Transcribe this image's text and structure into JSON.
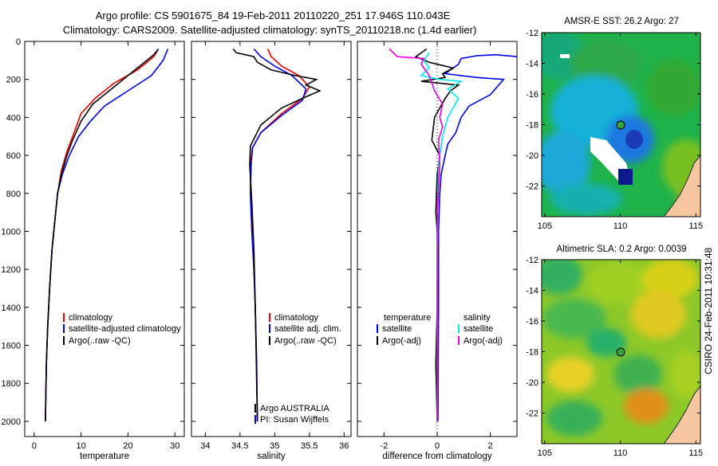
{
  "figure": {
    "title_line1": "Argo profile: CS 5901675_84 19-Feb-2011 20110220_251 17.946S 110.043E",
    "title_line2": "Climatology: CARS2009. Satellite-adjusted climatology: synTS_20110218.nc (1.4d earlier)",
    "side_text": "CSIRO 24-Feb-2011 10:31:48",
    "colors": {
      "red": "#e00000",
      "blue": "#0000e0",
      "black": "#000000",
      "cyan": "#00e8e8",
      "magenta": "#e000e0"
    }
  },
  "chart_data": [
    {
      "id": "temperature",
      "type": "line",
      "xlabel": "temperature",
      "ylabel": "",
      "xlim": [
        -2,
        32
      ],
      "ylim": [
        0,
        2080
      ],
      "y_inverted": true,
      "xticks": [
        "0",
        "10",
        "20",
        "30"
      ],
      "yticks": [
        "0",
        "200",
        "400",
        "600",
        "800",
        "1000",
        "1200",
        "1400",
        "1600",
        "1800",
        "2000"
      ],
      "legend": [
        "climatology",
        "satellite-adjusted climatology",
        "Argo(..raw -QC)"
      ],
      "series": [
        {
          "name": "climatology",
          "color": "red",
          "x": [
            26.5,
            25.5,
            22,
            17,
            13,
            10,
            8.5,
            7,
            5.8,
            5,
            4.6,
            3.8,
            3.3,
            2.9,
            2.6,
            2.4
          ],
          "y": [
            40,
            80,
            150,
            220,
            300,
            380,
            480,
            580,
            680,
            800,
            900,
            1100,
            1300,
            1500,
            1700,
            2000
          ]
        },
        {
          "name": "satellite-adjusted climatology",
          "color": "blue",
          "x": [
            28.5,
            27.5,
            25,
            20,
            15,
            12,
            9.5,
            7.5,
            6,
            5,
            4.6,
            3.8,
            3.3,
            2.9,
            2.6,
            2.4
          ],
          "y": [
            40,
            100,
            180,
            260,
            340,
            420,
            500,
            600,
            700,
            800,
            900,
            1100,
            1300,
            1500,
            1700,
            2000
          ]
        },
        {
          "name": "Argo(..raw -QC)",
          "color": "black",
          "x": [
            26.5,
            25.5,
            23,
            20,
            16.5,
            12.5,
            10,
            8.2,
            7,
            5.8,
            5,
            4.6,
            3.8,
            3.3,
            2.9,
            2.6,
            2.4
          ],
          "y": [
            40,
            70,
            120,
            180,
            250,
            330,
            420,
            520,
            600,
            700,
            800,
            900,
            1100,
            1300,
            1500,
            1700,
            2000
          ]
        }
      ]
    },
    {
      "id": "salinity",
      "type": "line",
      "xlabel": "salinity",
      "ylabel": "",
      "xlim": [
        33.8,
        36.1
      ],
      "ylim": [
        0,
        2080
      ],
      "y_inverted": true,
      "xticks": [
        "34",
        "34.5",
        "35",
        "35.5",
        "36"
      ],
      "legend": [
        "climatology",
        "satellite adj. clim.",
        "Argo(..raw -QC)"
      ],
      "annotations": [
        "Argo AUSTRALIA",
        "PI: Susan Wijffels"
      ],
      "series": [
        {
          "name": "climatology",
          "color": "red",
          "x": [
            34.9,
            34.95,
            35.1,
            35.35,
            35.5,
            35.4,
            35.1,
            34.8,
            34.68,
            34.65,
            34.65,
            34.67,
            34.7,
            34.72,
            34.74,
            34.75
          ],
          "y": [
            40,
            80,
            130,
            180,
            240,
            300,
            380,
            480,
            560,
            650,
            800,
            1000,
            1200,
            1400,
            1700,
            2000
          ]
        },
        {
          "name": "satellite adj. clim.",
          "color": "blue",
          "x": [
            34.7,
            34.8,
            35.0,
            35.25,
            35.45,
            35.4,
            35.1,
            34.8,
            34.68,
            34.66,
            34.65,
            34.67,
            34.7,
            34.72,
            34.74,
            34.75
          ],
          "y": [
            40,
            80,
            130,
            180,
            250,
            310,
            390,
            480,
            560,
            650,
            800,
            1000,
            1200,
            1400,
            1700,
            2000
          ]
        },
        {
          "name": "Argo(..raw -QC)",
          "color": "black",
          "x": [
            34.4,
            34.45,
            34.7,
            34.75,
            34.95,
            35.3,
            35.6,
            35.45,
            35.65,
            35.4,
            35.1,
            34.8,
            34.65,
            34.64,
            34.67,
            34.7,
            34.72,
            34.75
          ],
          "y": [
            40,
            60,
            80,
            110,
            150,
            180,
            200,
            230,
            260,
            300,
            350,
            440,
            550,
            650,
            850,
            1100,
            1400,
            2000
          ]
        }
      ]
    },
    {
      "id": "difference",
      "type": "line",
      "xlabel": "difference from climatology",
      "ylabel": "",
      "xlim": [
        -3,
        3
      ],
      "ylim": [
        0,
        2080
      ],
      "y_inverted": true,
      "xticks": [
        "-2",
        "0",
        "2"
      ],
      "legend_titles": [
        "temperature",
        "salinity"
      ],
      "legend": [
        "satellite",
        "Argo(-adj)",
        "satellite",
        "Argo(-adj)"
      ],
      "series": [
        {
          "name": "temperature satellite",
          "color": "blue",
          "x": [
            3,
            2.2,
            1.5,
            0.9,
            0.8,
            0.3,
            1.5,
            2.5,
            2.0,
            1.2,
            0.9,
            0.7,
            0.4,
            0.3,
            0.15,
            0.1,
            0.05,
            0.05,
            0.03
          ],
          "y": [
            80,
            70,
            75,
            90,
            120,
            170,
            190,
            200,
            280,
            340,
            400,
            480,
            540,
            600,
            700,
            800,
            1000,
            1400,
            2000
          ]
        },
        {
          "name": "temperature Argo(-adj)",
          "color": "black",
          "x": [
            -0.4,
            -0.8,
            -0.3,
            0.6,
            0.2,
            0.3,
            -0.6,
            0.8,
            0.5,
            0.3,
            -0.1,
            -0.2,
            0.1,
            0,
            -0.05,
            0.05,
            0,
            -0.05,
            0
          ],
          "y": [
            40,
            80,
            110,
            140,
            170,
            190,
            210,
            230,
            260,
            300,
            400,
            520,
            600,
            700,
            900,
            1100,
            1400,
            1700,
            2000
          ]
        },
        {
          "name": "salinity satellite",
          "color": "cyan",
          "x": [
            -0.3,
            -0.5,
            -0.3,
            -0.6,
            0.1,
            0.9,
            0.4,
            0.8,
            0.6,
            0.4,
            0.2,
            0.05,
            0.02,
            0,
            0
          ],
          "y": [
            60,
            100,
            140,
            180,
            200,
            210,
            250,
            300,
            350,
            400,
            500,
            650,
            900,
            1300,
            2000
          ]
        },
        {
          "name": "salinity Argo(-adj)",
          "color": "magenta",
          "x": [
            -1.8,
            -1.5,
            -0.5,
            -0.6,
            -0.3,
            -0.1,
            0.2,
            0.1,
            0.2,
            0.05,
            0.1,
            0,
            0
          ],
          "y": [
            40,
            80,
            90,
            120,
            180,
            260,
            330,
            400,
            450,
            520,
            650,
            900,
            2000
          ]
        }
      ]
    },
    {
      "id": "sst_map",
      "type": "heatmap",
      "title": "AMSR-E SST: 26.2 Argo: 27",
      "xticks": [
        "105",
        "110",
        "115"
      ],
      "yticks": [
        "-12",
        "-14",
        "-16",
        "-18",
        "-20",
        "-22"
      ],
      "xlim": [
        104.8,
        115.3
      ],
      "ylim": [
        -24,
        -12
      ],
      "argo_position": [
        110.04,
        -17.95
      ]
    },
    {
      "id": "sla_map",
      "type": "heatmap",
      "title": "Altimetric SLA: 0.2 Argo: 0.0039",
      "xticks": [
        "105",
        "110",
        "115"
      ],
      "yticks": [
        "-12",
        "-14",
        "-16",
        "-18",
        "-20",
        "-22"
      ],
      "xlim": [
        104.8,
        115.3
      ],
      "ylim": [
        -24,
        -12
      ],
      "argo_position": [
        110.04,
        -17.95
      ]
    }
  ]
}
